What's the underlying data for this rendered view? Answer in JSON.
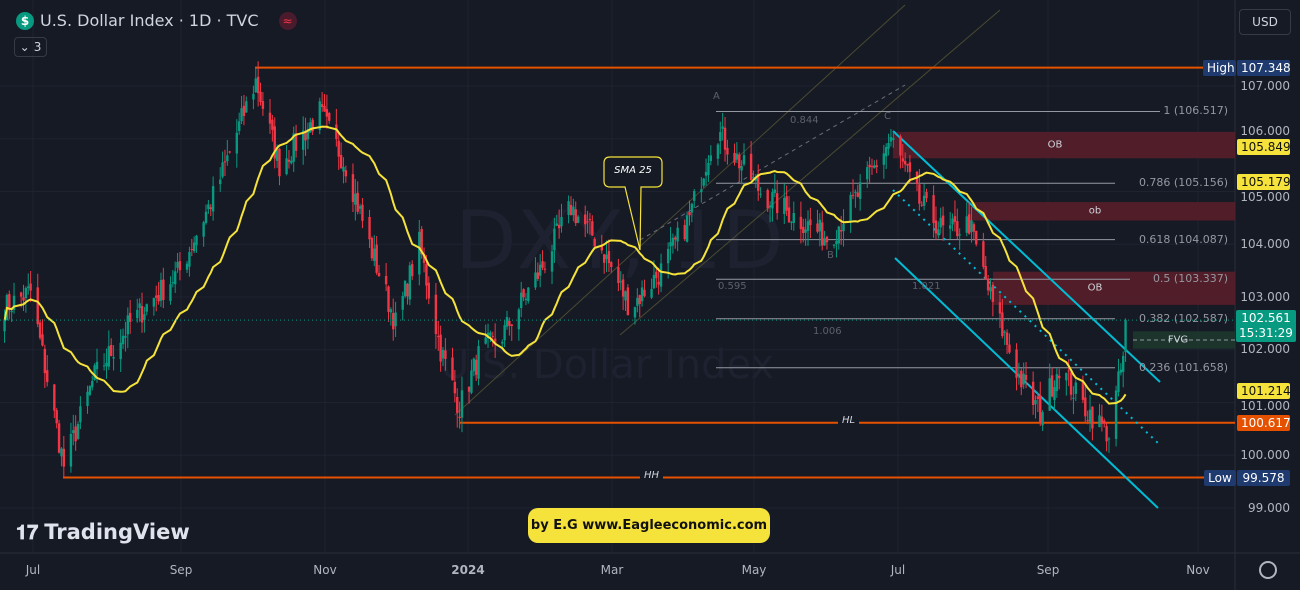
{
  "header": {
    "symbol_icon": "dollar-icon",
    "title": "U.S. Dollar Index · 1D · TVC",
    "indicator_count": "3",
    "currency": "USD"
  },
  "watermark": {
    "ticker": "DXY, 1D",
    "name": "U.S. Dollar Index"
  },
  "price_axis": {
    "ticks": [
      "107.000",
      "106.000",
      "105.000",
      "104.000",
      "103.000",
      "102.000",
      "101.000",
      "100.000",
      "99.000"
    ],
    "tick_values": [
      107,
      106,
      105,
      104,
      103,
      102,
      101,
      100,
      99
    ]
  },
  "time_axis": {
    "labels": [
      "Jul",
      "Sep",
      "Nov",
      "2024",
      "Mar",
      "May",
      "Jul",
      "Sep",
      "Nov"
    ]
  },
  "levels": {
    "high": {
      "label": "High",
      "value": "107.348",
      "price": 107.348
    },
    "low": {
      "label": "Low",
      "value": "99.578",
      "price": 99.578,
      "line_label": "HH"
    },
    "hl": {
      "value": "100.617",
      "price": 100.617,
      "line_label": "HL"
    },
    "current": {
      "value": "102.561",
      "countdown": "15:31:29",
      "price": 102.561
    },
    "yellow": [
      {
        "value": "105.849",
        "price": 105.849
      },
      {
        "value": "105.179",
        "price": 105.179
      },
      {
        "value": "101.214",
        "price": 101.214
      }
    ]
  },
  "fibonacci": [
    {
      "label": "1 (106.517)",
      "price": 106.517
    },
    {
      "label": "0.786 (105.156)",
      "price": 105.156
    },
    {
      "label": "0.618 (104.087)",
      "price": 104.087
    },
    {
      "label": "0.5 (103.337)",
      "price": 103.337
    },
    {
      "label": "0.382 (102.587)",
      "price": 102.587
    },
    {
      "label": "0.236 (101.658)",
      "price": 101.658
    }
  ],
  "pattern_labels": {
    "a": "A",
    "b": "B",
    "c": "C",
    "r1": "0.844",
    "r2": "0.595",
    "r3": "1.006",
    "r4": "1.021"
  },
  "zones": [
    {
      "label": "OB",
      "top": 106.13,
      "bottom": 105.63
    },
    {
      "label": "ob",
      "top": 104.8,
      "bottom": 104.45
    },
    {
      "label": "OB",
      "top": 103.48,
      "bottom": 102.85
    },
    {
      "label": "FVG",
      "top": 102.35,
      "bottom": 102.02
    }
  ],
  "callout": "SMA 25",
  "sma_period": 25,
  "price_path": [
    [
      "2023-06-19",
      102.8
    ],
    [
      "2023-06-30",
      103.1
    ],
    [
      "2023-07-14",
      99.8
    ],
    [
      "2023-07-27",
      101.5
    ],
    [
      "2023-08-11",
      102.5
    ],
    [
      "2023-09-01",
      103.5
    ],
    [
      "2023-09-16",
      105
    ],
    [
      "2023-10-03",
      107.1
    ],
    [
      "2023-10-13",
      105.5
    ],
    [
      "2023-10-30",
      106.5
    ],
    [
      "2023-11-10",
      105.5
    ],
    [
      "2023-11-20",
      104
    ],
    [
      "2023-12-01",
      102.5
    ],
    [
      "2023-12-11",
      104
    ],
    [
      "2023-12-20",
      102
    ],
    [
      "2023-12-28",
      100.9
    ],
    [
      "2024-01-06",
      102
    ],
    [
      "2024-01-14",
      102.2
    ],
    [
      "2024-01-31",
      103.5
    ],
    [
      "2024-02-13",
      104.7
    ],
    [
      "2024-02-25",
      104
    ],
    [
      "2024-03-09",
      102.8
    ],
    [
      "2024-03-22",
      103.5
    ],
    [
      "2024-04-03",
      104.5
    ],
    [
      "2024-04-14",
      106.2
    ],
    [
      "2024-05-03",
      105
    ],
    [
      "2024-05-15",
      104.6
    ],
    [
      "2024-06-01",
      104.1
    ],
    [
      "2024-06-14",
      105
    ],
    [
      "2024-06-27",
      106
    ],
    [
      "2024-07-09",
      104.8
    ],
    [
      "2024-07-20",
      104.2
    ],
    [
      "2024-07-30",
      104.4
    ],
    [
      "2024-08-08",
      103
    ],
    [
      "2024-08-20",
      101.5
    ],
    [
      "2024-08-29",
      100.8
    ],
    [
      "2024-09-06",
      101.7
    ],
    [
      "2024-09-15",
      101
    ],
    [
      "2024-09-27",
      100.4
    ],
    [
      "2024-10-06",
      102.56
    ]
  ],
  "colors": {
    "bg": "#161a25",
    "up": "#089981",
    "down": "#f23645",
    "sma": "#f5e33b",
    "orange": "#e65100",
    "cyan": "#00bcd4",
    "zone": "#5b1f2a",
    "label_blue": "#1e3a6e"
  },
  "branding": {
    "logo": "TradingView",
    "credit": "by E.G www.Eagleeconomic.com"
  },
  "settings_icon": "gear-icon"
}
